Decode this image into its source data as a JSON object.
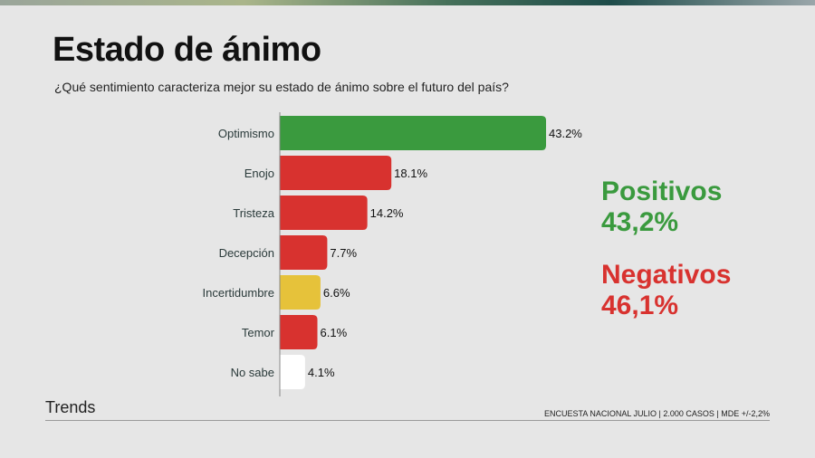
{
  "title": "Estado de ánimo",
  "subtitle": "¿Qué sentimiento caracteriza mejor su estado de ánimo sobre el futuro del país?",
  "summary": {
    "positive_label": "Positivos",
    "positive_value": "43,2%",
    "negative_label": "Negativos",
    "negative_value": "46,1%"
  },
  "brand": "Trends",
  "footnote": "ENCUESTA NACIONAL JULIO | 2.000 CASOS | MDE +/-2,2%",
  "colors": {
    "positive": "#3a9a3e",
    "negative": "#d8322f",
    "neutral": "#e6c23a",
    "unknown": "#ffffff"
  },
  "chart_data": {
    "type": "bar",
    "orientation": "horizontal",
    "categories": [
      "Optimismo",
      "Enojo",
      "Tristeza",
      "Decepción",
      "Incertidumbre",
      "Temor",
      "No sabe"
    ],
    "values": [
      43.2,
      18.1,
      14.2,
      7.7,
      6.6,
      6.1,
      4.1
    ],
    "data_labels": [
      "43.2%",
      "18.1%",
      "14.2%",
      "7.7%",
      "6.6%",
      "6.1%",
      "4.1%"
    ],
    "bar_colors": [
      "#3a9a3e",
      "#d8322f",
      "#d8322f",
      "#d8322f",
      "#e6c23a",
      "#d8322f",
      "#ffffff"
    ],
    "xlim": [
      0,
      43.2
    ],
    "grid": false
  }
}
